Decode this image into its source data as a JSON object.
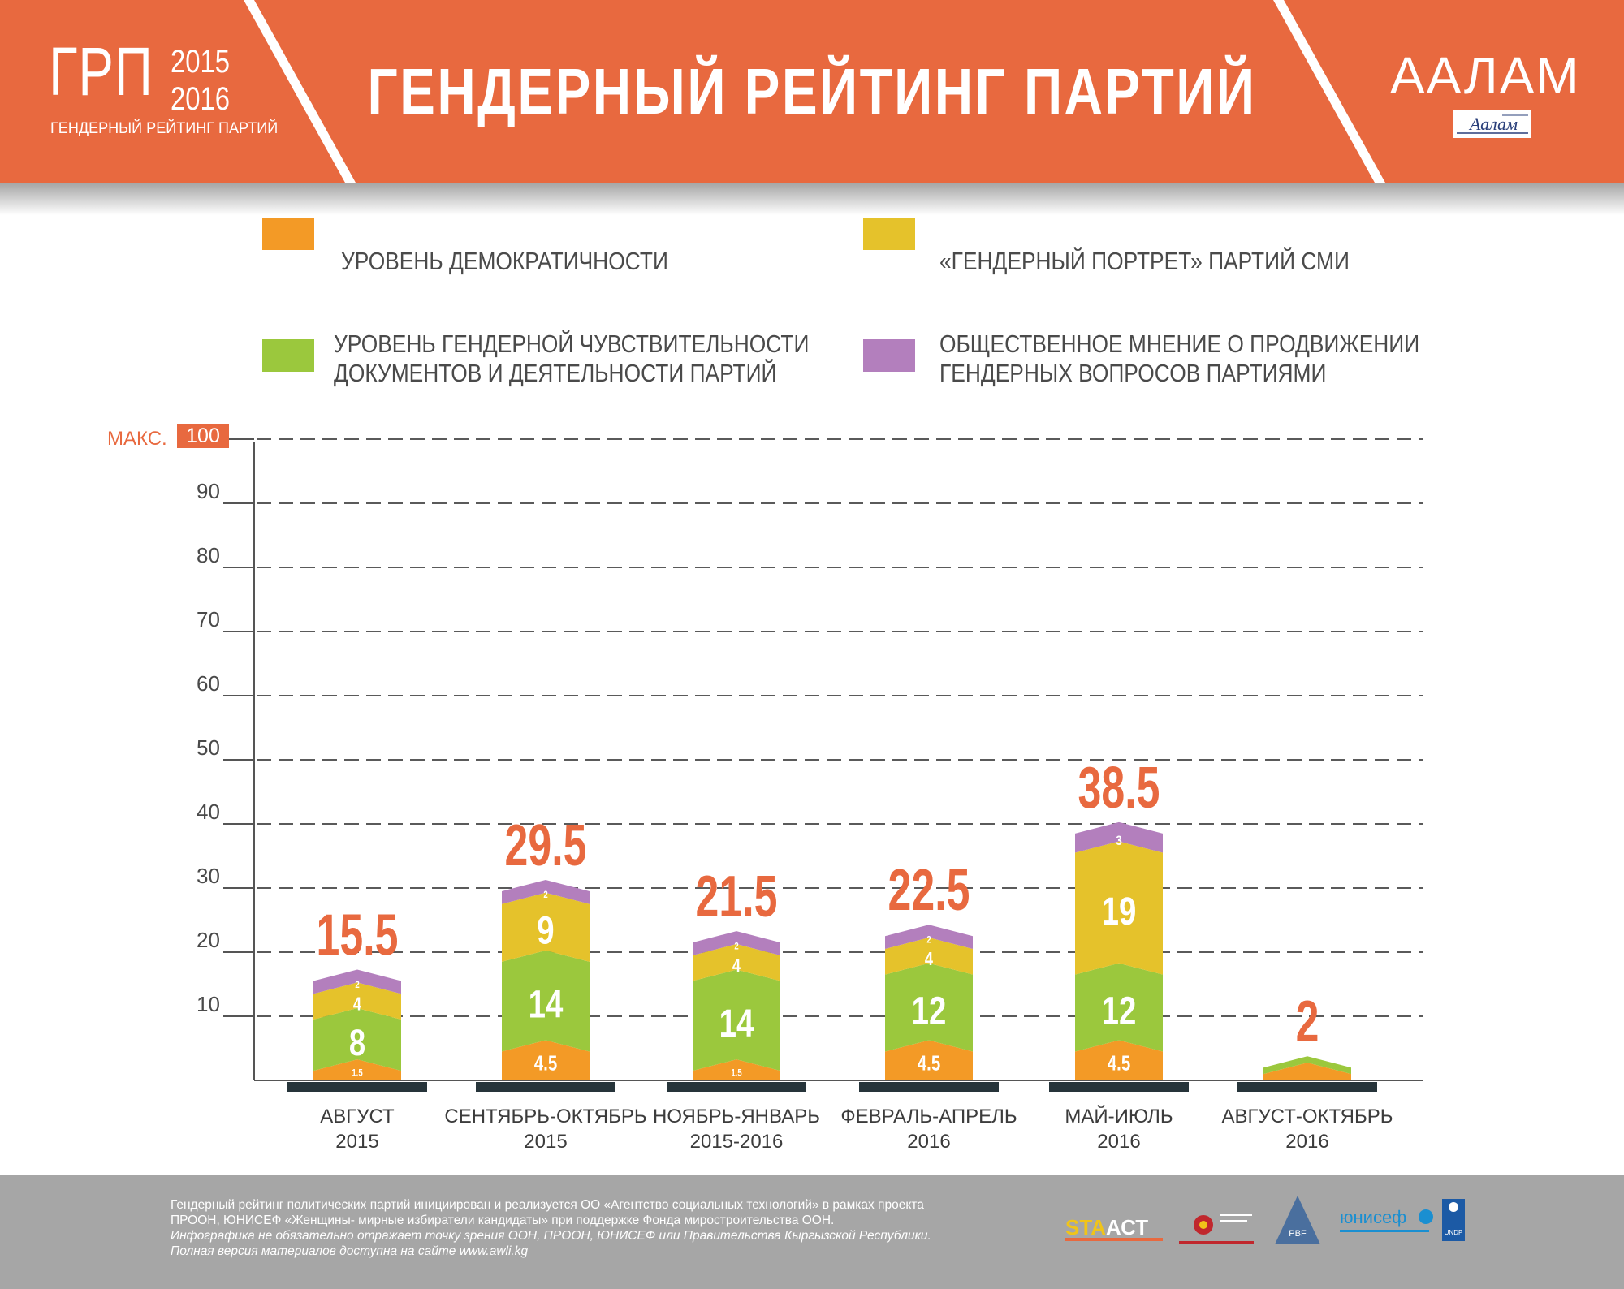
{
  "header": {
    "logo_main": "ГРП",
    "logo_year1": "2015",
    "logo_year2": "2016",
    "logo_sub": "ГЕНДЕРНЫЙ РЕЙТИНГ ПАРТИЙ",
    "title": "ГЕНДЕРНЫЙ РЕЙТИНГ ПАРТИЙ",
    "brand": "ААЛАМ",
    "brand_emblem_text": "Аалам"
  },
  "legend": [
    {
      "line1": "УРОВЕНЬ ДЕМОКРАТИЧНОСТИ",
      "line2": "",
      "color": "#f39a26"
    },
    {
      "line1": "«ГЕНДЕРНЫЙ ПОРТРЕТ» ПАРТИЙ СМИ",
      "line2": "",
      "color": "#e5c22b"
    },
    {
      "line1": "УРОВЕНЬ ГЕНДЕРНОЙ ЧУВСТВИТЕЛЬНОСТИ",
      "line2": "ДОКУМЕНТОВ И ДЕЯТЕЛЬНОСТИ ПАРТИЙ",
      "color": "#9bc83d"
    },
    {
      "line1": "ОБЩЕСТВЕННОЕ МНЕНИЕ О ПРОДВИЖЕНИИ",
      "line2": "ГЕНДЕРНЫХ ВОПРОСОВ ПАРТИЯМИ",
      "color": "#b37fbd"
    }
  ],
  "chart_data": {
    "type": "bar",
    "stacked": true,
    "ylim": [
      0,
      100
    ],
    "max_label": "МАКС.",
    "y_ticks": [
      10,
      20,
      30,
      40,
      50,
      60,
      70,
      80,
      90,
      100
    ],
    "categories": [
      {
        "line1": "АВГУСТ",
        "line2": "2015"
      },
      {
        "line1": "СЕНТЯБРЬ-ОКТЯБРЬ",
        "line2": "2015"
      },
      {
        "line1": "НОЯБРЬ-ЯНВАРЬ",
        "line2": "2015-2016"
      },
      {
        "line1": "ФЕВРАЛЬ-АПРЕЛЬ",
        "line2": "2016"
      },
      {
        "line1": "МАЙ-ИЮЛЬ",
        "line2": "2016"
      },
      {
        "line1": "АВГУСТ-ОКТЯБРЬ",
        "line2": "2016"
      }
    ],
    "series": [
      {
        "name": "УРОВЕНЬ ДЕМОКРАТИЧНОСТИ",
        "color": "#f39a26",
        "values": [
          1.5,
          4.5,
          1.5,
          4.5,
          4.5,
          1
        ],
        "labels": [
          "1.5",
          "4.5",
          "1.5",
          "4.5",
          "4.5",
          ""
        ]
      },
      {
        "name": "УРОВЕНЬ ГЕНДЕРНОЙ ЧУВСТВИТЕЛЬНОСТИ ДОКУМЕНТОВ И ДЕЯТЕЛЬНОСТИ ПАРТИЙ",
        "color": "#9bc83d",
        "values": [
          8,
          14,
          14,
          12,
          12,
          1
        ],
        "labels": [
          "8",
          "14",
          "14",
          "12",
          "12",
          ""
        ]
      },
      {
        "name": "«ГЕНДЕРНЫЙ ПОРТРЕТ» ПАРТИЙ СМИ",
        "color": "#e5c22b",
        "values": [
          4,
          9,
          4,
          4,
          19,
          0
        ],
        "labels": [
          "4",
          "9",
          "4",
          "4",
          "19",
          ""
        ]
      },
      {
        "name": "ОБЩЕСТВЕННОЕ МНЕНИЕ О ПРОДВИЖЕНИИ ГЕНДЕРНЫХ ВОПРОСОВ ПАРТИЯМИ",
        "color": "#b37fbd",
        "values": [
          2,
          2,
          2,
          2,
          3,
          0
        ],
        "labels": [
          "2",
          "2",
          "2",
          "2",
          "3",
          ""
        ]
      }
    ],
    "totals": [
      "15.5",
      "29.5",
      "21.5",
      "22.5",
      "38.5",
      "2"
    ],
    "colors": {
      "total": "#e8693f",
      "axis": "#555555",
      "base": "#26343a",
      "max_badge": "#e8693f"
    }
  },
  "footer": {
    "line1": "Гендерный рейтинг политических партий инициирован и реализуется ОО «Агентство социальных технологий» в рамках проекта",
    "line2": "ПРООН, ЮНИСЕФ «Женщины- мирные избиратели кандидаты» при поддержке Фонда миростроительства ООН.",
    "line3": "Инфографика не обязательно отражает точку зрения ООН, ПРООН, ЮНИСЕФ или Правительства Кыргызской Республики.",
    "line4": "Полная версия материалов доступна на сайте www.awli.kg",
    "logo_sta": "STA",
    "logo_act": "АСТ",
    "logo_pbf": "PBF",
    "logo_unicef": "юнисеф",
    "logo_undp": "UNDP"
  }
}
